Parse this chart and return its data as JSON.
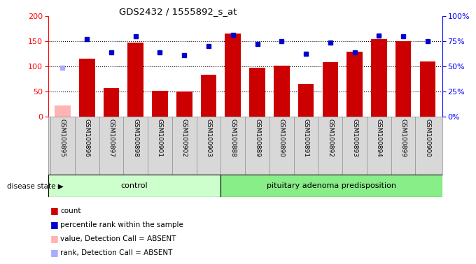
{
  "title": "GDS2432 / 1555892_s_at",
  "samples": [
    "GSM100895",
    "GSM100896",
    "GSM100897",
    "GSM100898",
    "GSM100901",
    "GSM100902",
    "GSM100903",
    "GSM100888",
    "GSM100889",
    "GSM100890",
    "GSM100891",
    "GSM100892",
    "GSM100893",
    "GSM100894",
    "GSM100899",
    "GSM100900"
  ],
  "bar_values": [
    22,
    115,
    57,
    148,
    52,
    50,
    83,
    165,
    98,
    101,
    65,
    108,
    130,
    155,
    150,
    110
  ],
  "bar_absent": [
    true,
    false,
    false,
    false,
    false,
    false,
    false,
    false,
    false,
    false,
    false,
    false,
    false,
    false,
    false,
    false
  ],
  "dot_values": [
    49,
    77.5,
    64,
    80,
    64,
    61.5,
    70,
    81.5,
    72.5,
    75,
    62.5,
    74,
    64,
    81,
    80,
    75
  ],
  "dot_absent": [
    true,
    false,
    false,
    false,
    false,
    false,
    false,
    false,
    false,
    false,
    false,
    false,
    false,
    false,
    false,
    false
  ],
  "control_count": 7,
  "disease_count": 9,
  "control_label": "control",
  "disease_label": "pituitary adenoma predisposition",
  "group_label": "disease state",
  "ylim_left": [
    0,
    200
  ],
  "yticks_left": [
    0,
    50,
    100,
    150,
    200
  ],
  "yticks_right": [
    0,
    25,
    50,
    75,
    100
  ],
  "ytick_labels_right": [
    "0%",
    "25%",
    "50%",
    "75%",
    "100%"
  ],
  "bar_color_normal": "#cc0000",
  "bar_color_absent": "#ffb3b3",
  "dot_color_normal": "#0000cc",
  "dot_color_absent": "#aaaaff",
  "sample_bg": "#d8d8d8",
  "control_bg": "#ccffcc",
  "disease_bg": "#88ee88",
  "plot_bg": "white",
  "legend_items": [
    {
      "label": "count",
      "color": "#cc0000"
    },
    {
      "label": "percentile rank within the sample",
      "color": "#0000cc"
    },
    {
      "label": "value, Detection Call = ABSENT",
      "color": "#ffb3b3"
    },
    {
      "label": "rank, Detection Call = ABSENT",
      "color": "#aaaaff"
    }
  ]
}
